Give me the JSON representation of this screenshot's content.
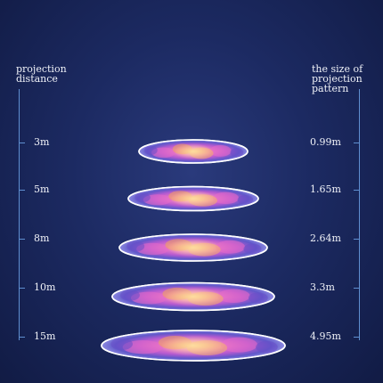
{
  "left_header": [
    "projection",
    "distance"
  ],
  "right_header": [
    "the size of",
    "projection",
    "pattern"
  ],
  "rows": [
    {
      "distance": "3m",
      "size": "0.99m"
    },
    {
      "distance": "5m",
      "size": "1.65m"
    },
    {
      "distance": "8m",
      "size": "2.64m"
    },
    {
      "distance": "10m",
      "size": "3.3m"
    },
    {
      "distance": "15m",
      "size": "4.95m"
    }
  ],
  "colors": {
    "background": "#1c2a62",
    "axis": "#5f8fd0",
    "disk_rim": "#ffffff",
    "pattern_pink": "#e86ac8",
    "pattern_orange": "#f3a55a",
    "pattern_purple": "#6a4ec9"
  }
}
